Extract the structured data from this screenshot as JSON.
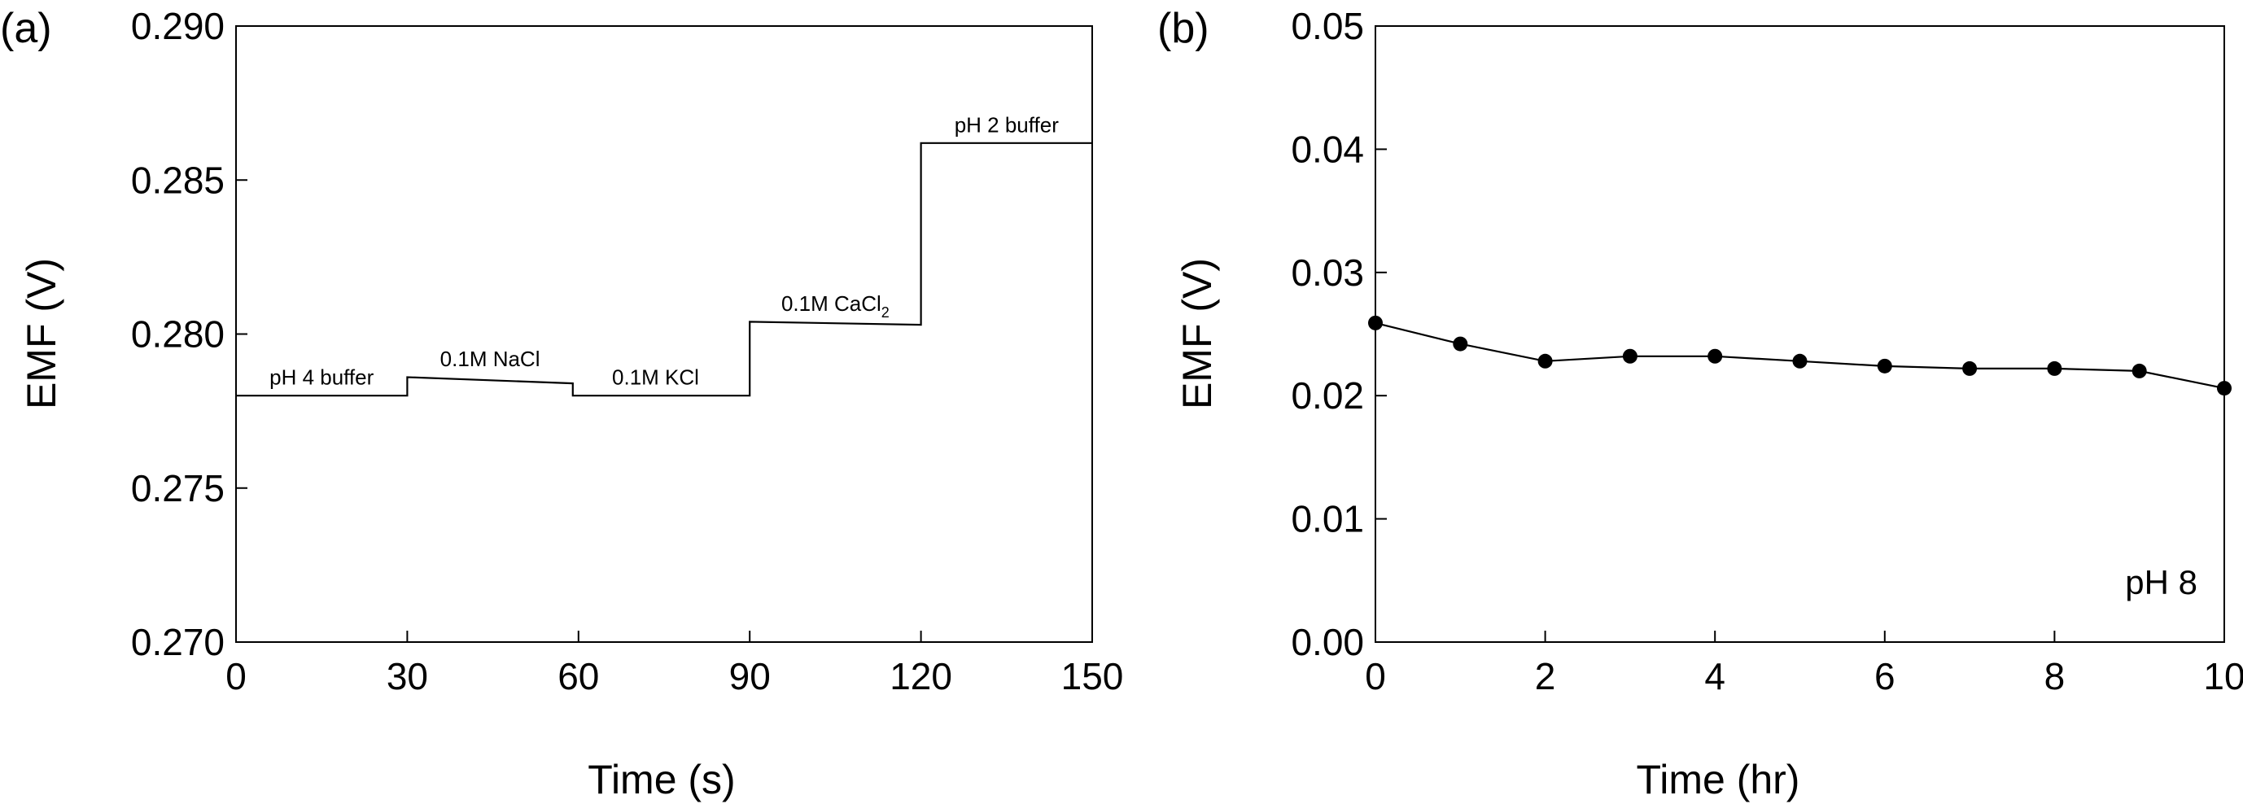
{
  "chart_data": [
    {
      "type": "line",
      "panel_label": "(a)",
      "xlabel": "Time (s)",
      "ylabel": "EMF (V)",
      "xlim": [
        0,
        150
      ],
      "ylim": [
        0.27,
        0.29
      ],
      "xticks": [
        0,
        30,
        60,
        90,
        120,
        150
      ],
      "yticks": [
        "0.270",
        "0.275",
        "0.280",
        "0.285",
        "0.290"
      ],
      "grid": false,
      "series": [
        {
          "x": [
            0,
            30,
            30,
            59,
            59,
            90,
            90,
            120,
            120,
            150
          ],
          "y": [
            0.278,
            0.278,
            0.2786,
            0.2784,
            0.278,
            0.278,
            0.2804,
            0.2803,
            0.2862,
            0.2862
          ]
        }
      ],
      "annotations": [
        {
          "text": "pH 4 buffer",
          "x": 15,
          "y": 0.2782
        },
        {
          "text": "0.1M NaCl",
          "x": 44.5,
          "y": 0.2788
        },
        {
          "text": "0.1M KCl",
          "x": 73.5,
          "y": 0.2782
        },
        {
          "text": "0.1M CaCl",
          "sub": "2",
          "x": 105,
          "y": 0.2806
        },
        {
          "text": "pH 2 buffer",
          "x": 135,
          "y": 0.2864
        }
      ]
    },
    {
      "type": "line",
      "panel_label": "(b)",
      "xlabel": "Time (hr)",
      "ylabel": "EMF (V)",
      "xlim": [
        0,
        10
      ],
      "ylim": [
        0.0,
        0.05
      ],
      "xticks": [
        0,
        2,
        4,
        6,
        8,
        10
      ],
      "yticks": [
        "0.00",
        "0.01",
        "0.02",
        "0.03",
        "0.04",
        "0.05"
      ],
      "grid": false,
      "markers": "filled-circle",
      "series": [
        {
          "x": [
            0,
            1,
            2,
            3,
            4,
            5,
            6,
            7,
            8,
            9,
            10
          ],
          "y": [
            0.0259,
            0.0242,
            0.0228,
            0.0232,
            0.0232,
            0.0228,
            0.0224,
            0.0222,
            0.0222,
            0.022,
            0.0206
          ]
        }
      ],
      "inset_text": "pH 8"
    }
  ]
}
